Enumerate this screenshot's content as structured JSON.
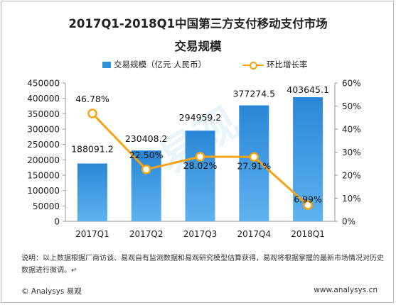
{
  "title_line1": "2017Q1-2018Q1中国第三方支付移动支付市场",
  "title_line2": "交易规模",
  "legend": {
    "bar_label": "交易规模（亿元 人民币）",
    "line_label": "环比增长率"
  },
  "note": "说明：以上数据根据厂商访谈、易观自有监测数据和易观研究模型估算获得，易观将根据掌握的最新市场情况对历史数据进行微调。↵",
  "footer": {
    "copyright": "© Analysys 易观",
    "website": "www.analysys.cn"
  },
  "chart_data": {
    "type": "bar",
    "categories": [
      "2017Q1",
      "2017Q2",
      "2017Q3",
      "2017Q4",
      "2018Q1"
    ],
    "series": [
      {
        "name": "交易规模（亿元 人民币）",
        "type": "bar",
        "axis": "left",
        "values": [
          188091.2,
          230408.2,
          294959.2,
          377274.5,
          403645.1
        ],
        "labels": [
          "188091.2",
          "230408.2",
          "294959.2",
          "377274.5",
          "403645.1"
        ],
        "color": "#2e8fd9"
      },
      {
        "name": "环比增长率",
        "type": "line",
        "axis": "right",
        "values": [
          46.78,
          22.5,
          28.02,
          27.91,
          6.99
        ],
        "labels": [
          "46.78%",
          "22.50%",
          "28.02%",
          "27.91%",
          "6.99%"
        ],
        "color": "#f5a317"
      }
    ],
    "y_left": {
      "ylim": [
        0,
        450000
      ],
      "ticks": [
        0,
        50000,
        100000,
        150000,
        200000,
        250000,
        300000,
        350000,
        400000,
        450000
      ],
      "tick_labels": [
        "0",
        "50000",
        "100000",
        "150000",
        "200000",
        "250000",
        "300000",
        "350000",
        "400000",
        "450000"
      ]
    },
    "y_right": {
      "ylim": [
        0,
        60
      ],
      "ticks": [
        0,
        10,
        20,
        30,
        40,
        50,
        60
      ],
      "tick_labels": [
        "0%",
        "10%",
        "20%",
        "30%",
        "40%",
        "50%",
        "60%"
      ]
    },
    "grid": false,
    "legend_position": "top-center",
    "watermark": "易观"
  }
}
